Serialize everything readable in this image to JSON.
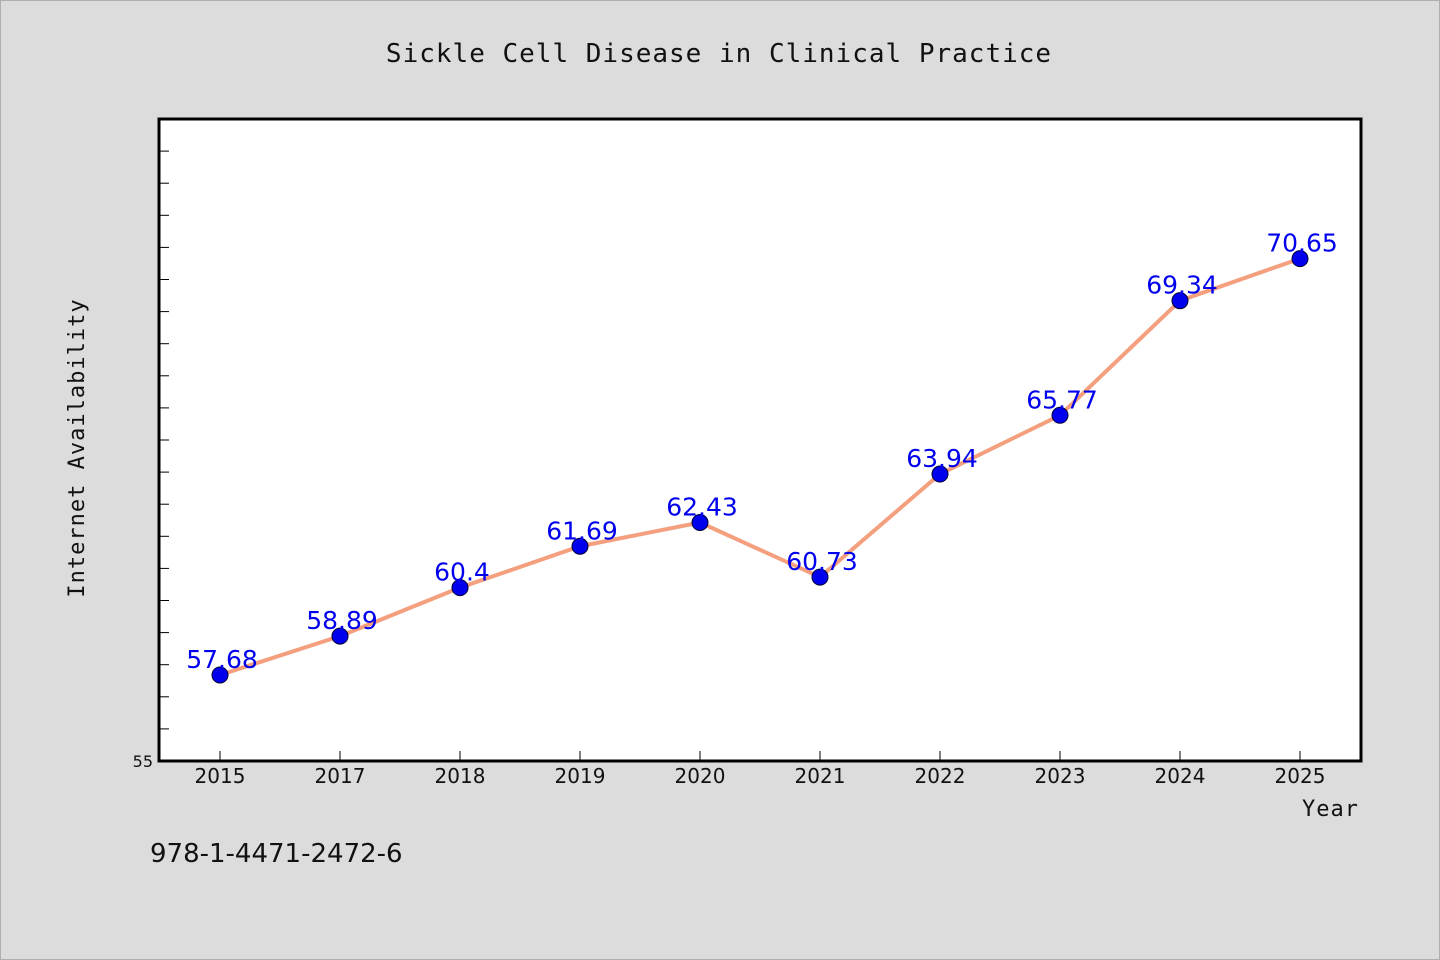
{
  "footer_code": "978-1-4471-2472-6",
  "colors": {
    "background": "#dcdcdc",
    "plot_background": "#ffffff",
    "line": "#f4a07e",
    "marker": "#0000ee",
    "data_label": "#0000ee"
  },
  "chart_data": {
    "type": "line",
    "title": "Sickle Cell Disease in Clinical Practice",
    "xlabel": "Year",
    "ylabel": "Internet Availability",
    "categories": [
      "2015",
      "2017",
      "2018",
      "2019",
      "2020",
      "2021",
      "2022",
      "2023",
      "2024",
      "2025"
    ],
    "series": [
      {
        "values": [
          57.68,
          58.89,
          60.4,
          61.69,
          62.43,
          60.73,
          63.94,
          65.77,
          69.34,
          70.65
        ]
      }
    ],
    "data_labels": [
      "57.68",
      "58.89",
      "60.4",
      "61.69",
      "62.43",
      "60.73",
      "63.94",
      "65.77",
      "69.34",
      "70.65"
    ],
    "ylim": [
      55,
      75
    ],
    "ytick_labels": [
      "55"
    ],
    "minor_tick_step": 1,
    "grid": false,
    "legend": "none"
  }
}
